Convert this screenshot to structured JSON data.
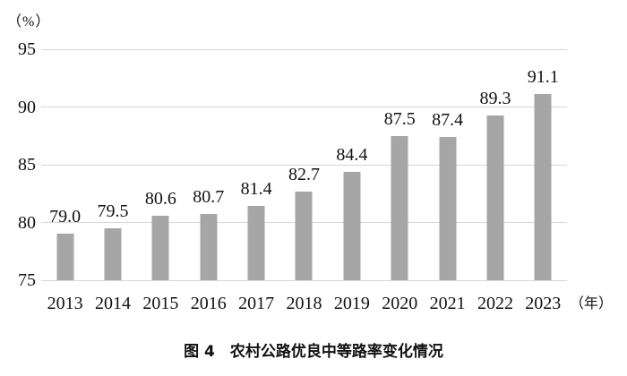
{
  "chart": {
    "y_unit_label": "（%）",
    "x_unit_label": "（年）",
    "caption": "图 4　农村公路优良中等路率变化情况"
  },
  "chart_data": {
    "type": "bar",
    "title": "图 4　农村公路优良中等路率变化情况",
    "categories": [
      "2013",
      "2014",
      "2015",
      "2016",
      "2017",
      "2018",
      "2019",
      "2020",
      "2021",
      "2022",
      "2023"
    ],
    "values": [
      79.0,
      79.5,
      80.6,
      80.7,
      81.4,
      82.7,
      84.4,
      87.5,
      87.4,
      89.3,
      91.1
    ],
    "value_labels": [
      "79.0",
      "79.5",
      "80.6",
      "80.7",
      "81.4",
      "82.7",
      "84.4",
      "87.5",
      "87.4",
      "89.3",
      "91.1"
    ],
    "xlabel": "（年）",
    "ylabel": "（%）",
    "ylim": [
      75,
      95
    ],
    "yticks": [
      75,
      80,
      85,
      90,
      95
    ],
    "grid": true,
    "legend": "none",
    "bar_color": "#a6a6a6",
    "grid_color": "#d6d6d6",
    "text_color": "#111111"
  }
}
